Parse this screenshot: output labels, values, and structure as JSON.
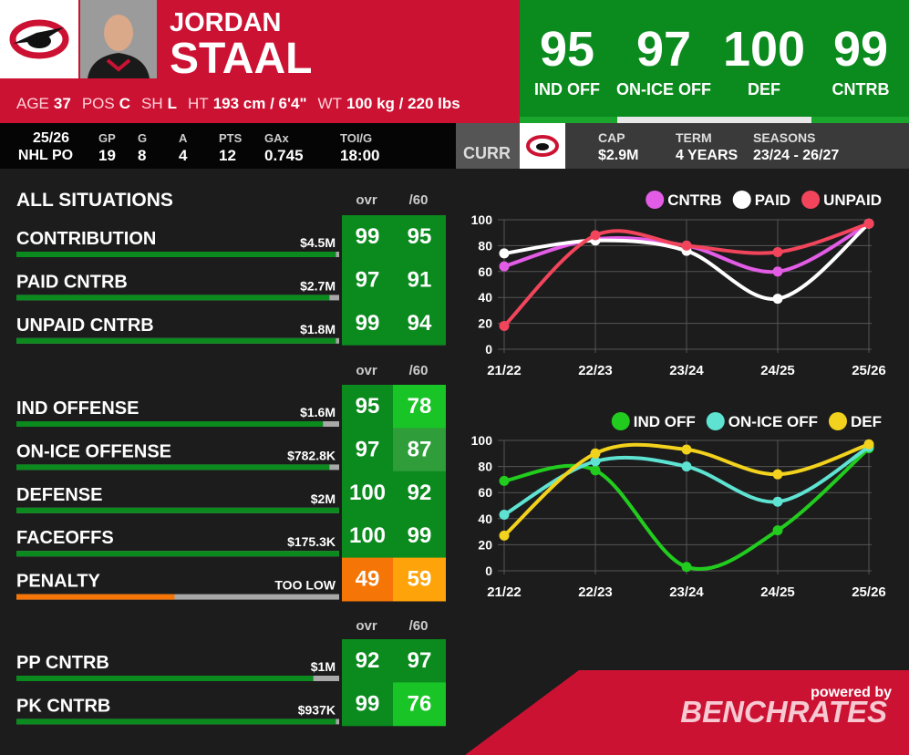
{
  "header": {
    "first_name": "JORDAN",
    "last_name": "STAAL",
    "bio": [
      {
        "label": "AGE",
        "value": "37"
      },
      {
        "label": "POS",
        "value": "C"
      },
      {
        "label": "SH",
        "value": "L"
      },
      {
        "label": "HT",
        "value": "193 cm / 6'4\""
      },
      {
        "label": "WT",
        "value": "100 kg / 220 lbs"
      }
    ],
    "ratings": [
      {
        "value": 95,
        "label": "IND OFF"
      },
      {
        "value": 97,
        "label": "ON-ICE OFF"
      },
      {
        "value": 100,
        "label": "DEF"
      },
      {
        "value": 99,
        "label": "CNTRB"
      }
    ]
  },
  "season": {
    "season": "25/26",
    "league": "NHL PO",
    "stats": [
      {
        "label": "GP",
        "value": 19
      },
      {
        "label": "G",
        "value": 8
      },
      {
        "label": "A",
        "value": 4
      },
      {
        "label": "PTS",
        "value": 12
      },
      {
        "label": "GAx",
        "value": 0.745
      },
      {
        "label": "TOI/G",
        "value": "18:00"
      }
    ]
  },
  "contract": {
    "status": "CURR",
    "items": [
      {
        "label": "CAP",
        "value": "$2.9M"
      },
      {
        "label": "TERM",
        "value": "4 YEARS"
      },
      {
        "label": "SEASONS",
        "value": "23/24 - 26/27"
      }
    ]
  },
  "groups": [
    {
      "title": "ALL SITUATIONS",
      "headers": [
        "ovr",
        "/60"
      ],
      "rows": [
        {
          "name": "CONTRIBUTION",
          "value": "$4.5M",
          "ovr": 99,
          "per60": 95
        },
        {
          "name": "PAID CNTRB",
          "value": "$2.7M",
          "ovr": 97,
          "per60": 91
        },
        {
          "name": "UNPAID CNTRB",
          "value": "$1.8M",
          "ovr": 99,
          "per60": 94
        }
      ]
    },
    {
      "headers": [
        "ovr",
        "/60"
      ],
      "rows": [
        {
          "name": "IND OFFENSE",
          "value": "$1.6M",
          "ovr": 95,
          "per60": 78
        },
        {
          "name": "ON-ICE OFFENSE",
          "value": "$782.8K",
          "ovr": 97,
          "per60": 87
        },
        {
          "name": "DEFENSE",
          "value": "$2M",
          "ovr": 100,
          "per60": 92
        },
        {
          "name": "FACEOFFS",
          "value": "$175.3K",
          "ovr": 100,
          "per60": 99
        },
        {
          "name": "PENALTY",
          "value": "TOO LOW",
          "ovr": 49,
          "per60": 59
        }
      ]
    },
    {
      "headers": [
        "ovr",
        "/60"
      ],
      "rows": [
        {
          "name": "PP CNTRB",
          "value": "$1M",
          "ovr": 92,
          "per60": 97
        },
        {
          "name": "PK CNTRB",
          "value": "$937K",
          "ovr": 99,
          "per60": 76
        }
      ]
    }
  ],
  "chart_data": [
    {
      "type": "line",
      "categories": [
        "21/22",
        "22/23",
        "23/24",
        "24/25",
        "25/26"
      ],
      "ylim": [
        0,
        100
      ],
      "yticks": [
        0,
        20,
        40,
        60,
        80,
        100
      ],
      "grid": true,
      "series": [
        {
          "name": "CNTRB",
          "color": "#e35ce6",
          "values": [
            64,
            85,
            80,
            60,
            97
          ]
        },
        {
          "name": "PAID",
          "color": "#ffffff",
          "values": [
            74,
            84,
            76,
            39,
            97
          ]
        },
        {
          "name": "UNPAID",
          "color": "#f2455c",
          "values": [
            18,
            88,
            80,
            75,
            97
          ]
        }
      ]
    },
    {
      "type": "line",
      "categories": [
        "21/22",
        "22/23",
        "23/24",
        "24/25",
        "25/26"
      ],
      "ylim": [
        0,
        100
      ],
      "yticks": [
        0,
        20,
        40,
        60,
        80,
        100
      ],
      "grid": true,
      "series": [
        {
          "name": "IND OFF",
          "color": "#22cc1e",
          "values": [
            69,
            77,
            3,
            31,
            94
          ]
        },
        {
          "name": "ON-ICE OFF",
          "color": "#5ee3d2",
          "values": [
            43,
            84,
            80,
            53,
            95
          ]
        },
        {
          "name": "DEF",
          "color": "#f2d21c",
          "values": [
            27,
            90,
            93,
            74,
            97
          ]
        }
      ]
    }
  ],
  "footer": {
    "powered_by": "powered by",
    "brand": "BENCHRATES"
  }
}
